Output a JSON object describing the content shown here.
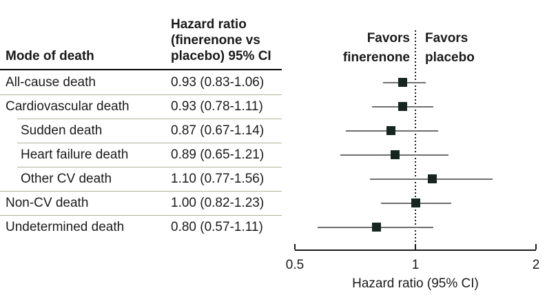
{
  "table": {
    "col1_header": "Mode of death",
    "col2_header_lines": [
      "Hazard ratio",
      "(finerenone vs",
      "placebo) 95% CI"
    ]
  },
  "chart_data": {
    "type": "forest",
    "rows": [
      {
        "label": "All-cause death",
        "hr": 0.93,
        "ci_low": 0.83,
        "ci_high": 1.06,
        "ci_text": "0.93 (0.83-1.06)",
        "indent": false
      },
      {
        "label": "Cardiovascular death",
        "hr": 0.93,
        "ci_low": 0.78,
        "ci_high": 1.11,
        "ci_text": "0.93 (0.78-1.11)",
        "indent": false
      },
      {
        "label": "Sudden death",
        "hr": 0.87,
        "ci_low": 0.67,
        "ci_high": 1.14,
        "ci_text": "0.87 (0.67-1.14)",
        "indent": true
      },
      {
        "label": "Heart failure death",
        "hr": 0.89,
        "ci_low": 0.65,
        "ci_high": 1.21,
        "ci_text": "0.89 (0.65-1.21)",
        "indent": true
      },
      {
        "label": "Other CV death",
        "hr": 1.1,
        "ci_low": 0.77,
        "ci_high": 1.56,
        "ci_text": "1.10 (0.77-1.56)",
        "indent": true
      },
      {
        "label": "Non-CV death",
        "hr": 1.0,
        "ci_low": 0.82,
        "ci_high": 1.23,
        "ci_text": "1.00 (0.82-1.23)",
        "indent": false
      },
      {
        "label": "Undetermined death",
        "hr": 0.8,
        "ci_low": 0.57,
        "ci_high": 1.11,
        "ci_text": "0.80 (0.57-1.11)",
        "indent": false
      }
    ],
    "x_axis": {
      "scale": "log",
      "range": [
        0.5,
        2
      ],
      "ticks": [
        0.5,
        1,
        2
      ],
      "tick_labels": [
        "0.5",
        "1",
        "2"
      ],
      "label": "Hazard ratio (95% CI)",
      "reference_line": 1
    },
    "annotations": {
      "favors_left_lines": [
        "Favors",
        "finerenone"
      ],
      "favors_right_lines": [
        "Favors",
        "placebo"
      ]
    }
  },
  "colors": {
    "text": "#1a1a1a",
    "marker": "#16251f",
    "ci_line": "#6e6e6e",
    "separator": "#b1b19a",
    "header_rule": "#000000",
    "axis": "#1a1a1a"
  }
}
